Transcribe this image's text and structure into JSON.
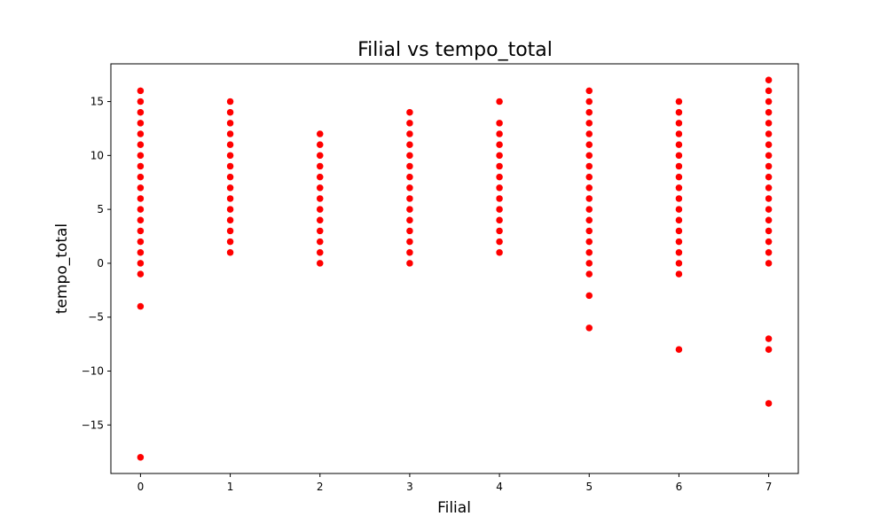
{
  "chart_data": {
    "type": "scatter",
    "title": "Filial vs tempo_total",
    "xlabel": "Filial",
    "ylabel": "tempo_total",
    "xlim": [
      -0.33,
      7.33
    ],
    "ylim": [
      -19.5,
      18.5
    ],
    "x_ticks": [
      0,
      1,
      2,
      3,
      4,
      5,
      6,
      7
    ],
    "y_ticks": [
      -15,
      -10,
      -5,
      0,
      5,
      10,
      15
    ],
    "y_tick_labels": [
      "−15",
      "−10",
      "−5",
      "0",
      "5",
      "10",
      "15"
    ],
    "grid": false,
    "marker_color": "#ff0000",
    "points": [
      {
        "x": 0,
        "y": [
          16,
          15,
          14,
          13,
          12,
          11,
          10,
          9,
          8,
          7,
          6,
          5,
          4,
          3,
          2,
          1,
          0,
          -1,
          -4,
          -18
        ]
      },
      {
        "x": 1,
        "y": [
          15,
          14,
          13,
          12,
          11,
          10,
          9,
          8,
          7,
          6,
          5,
          4,
          3,
          2,
          1
        ]
      },
      {
        "x": 2,
        "y": [
          12,
          11,
          10,
          9,
          8,
          7,
          6,
          5,
          4,
          3,
          2,
          1,
          0
        ]
      },
      {
        "x": 3,
        "y": [
          14,
          13,
          12,
          11,
          10,
          9,
          8,
          7,
          6,
          5,
          4,
          3,
          2,
          1,
          0
        ]
      },
      {
        "x": 4,
        "y": [
          15,
          13,
          12,
          11,
          10,
          9,
          8,
          7,
          6,
          5,
          4,
          3,
          2,
          1
        ]
      },
      {
        "x": 5,
        "y": [
          16,
          15,
          14,
          13,
          12,
          11,
          10,
          9,
          8,
          7,
          6,
          5,
          4,
          3,
          2,
          1,
          0,
          -1,
          -3,
          -6
        ]
      },
      {
        "x": 6,
        "y": [
          15,
          14,
          13,
          12,
          11,
          10,
          9,
          8,
          7,
          6,
          5,
          4,
          3,
          2,
          1,
          0,
          -1,
          -8
        ]
      },
      {
        "x": 7,
        "y": [
          17,
          16,
          15,
          14,
          13,
          12,
          11,
          10,
          9,
          8,
          7,
          6,
          5,
          4,
          3,
          2,
          1,
          0,
          -7,
          -8,
          -13
        ]
      }
    ]
  }
}
